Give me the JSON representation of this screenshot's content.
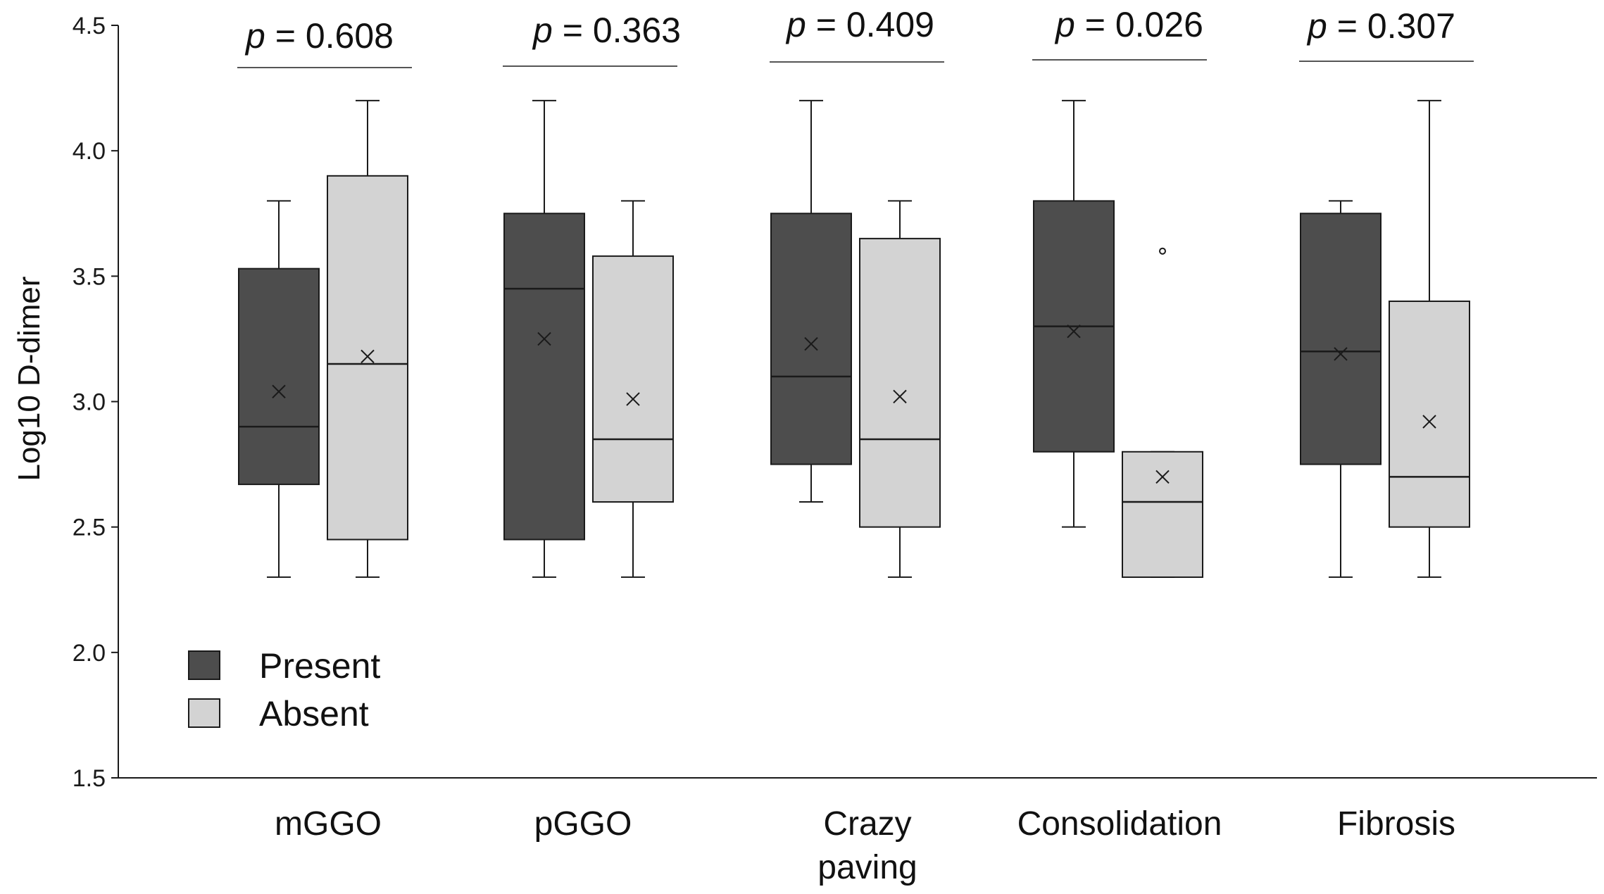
{
  "chart_data": {
    "type": "boxplot",
    "ylabel": "Log10 D-dimer",
    "ylim": [
      1.5,
      4.5
    ],
    "yticks": [
      "1.5",
      "2.0",
      "2.5",
      "3.0",
      "3.5",
      "4.0",
      "4.5"
    ],
    "legend": {
      "position": "lower-left",
      "entries": [
        {
          "name": "Present",
          "color": "#4d4d4d"
        },
        {
          "name": "Absent",
          "color": "#d3d3d3"
        }
      ]
    },
    "p_prefix": "p",
    "categories": [
      {
        "name_lines": [
          "mGGO"
        ],
        "p_value": " = 0.608",
        "present": {
          "min": 2.3,
          "q1": 2.67,
          "median": 2.9,
          "q3": 3.53,
          "max": 3.8,
          "mean": 3.04,
          "outliers": []
        },
        "absent": {
          "min": 2.3,
          "q1": 2.45,
          "median": 3.15,
          "q3": 3.9,
          "max": 4.2,
          "mean": 3.18,
          "outliers": []
        }
      },
      {
        "name_lines": [
          "pGGO"
        ],
        "p_value": " = 0.363",
        "present": {
          "min": 2.3,
          "q1": 2.45,
          "median": 3.45,
          "q3": 3.75,
          "max": 4.2,
          "mean": 3.25,
          "outliers": []
        },
        "absent": {
          "min": 2.3,
          "q1": 2.6,
          "median": 2.85,
          "q3": 3.58,
          "max": 3.8,
          "mean": 3.01,
          "outliers": []
        }
      },
      {
        "name_lines": [
          "Crazy",
          "paving"
        ],
        "p_value": " = 0.409",
        "present": {
          "min": 2.6,
          "q1": 2.75,
          "median": 3.1,
          "q3": 3.75,
          "max": 4.2,
          "mean": 3.23,
          "outliers": []
        },
        "absent": {
          "min": 2.3,
          "q1": 2.5,
          "median": 2.85,
          "q3": 3.65,
          "max": 3.8,
          "mean": 3.02,
          "outliers": []
        }
      },
      {
        "name_lines": [
          "Consolidation"
        ],
        "p_value": " = 0.026",
        "present": {
          "min": 2.5,
          "q1": 2.8,
          "median": 3.3,
          "q3": 3.8,
          "max": 4.2,
          "mean": 3.28,
          "outliers": []
        },
        "absent": {
          "min": 2.3,
          "q1": 2.3,
          "median": 2.6,
          "q3": 2.8,
          "max": 2.8,
          "mean": 2.7,
          "outliers": [
            3.6
          ]
        }
      },
      {
        "name_lines": [
          "Fibrosis"
        ],
        "p_value": " = 0.307",
        "present": {
          "min": 2.3,
          "q1": 2.75,
          "median": 3.2,
          "q3": 3.75,
          "max": 3.8,
          "mean": 3.19,
          "outliers": []
        },
        "absent": {
          "min": 2.3,
          "q1": 2.5,
          "median": 2.7,
          "q3": 3.4,
          "max": 4.2,
          "mean": 2.92,
          "outliers": []
        }
      }
    ]
  }
}
